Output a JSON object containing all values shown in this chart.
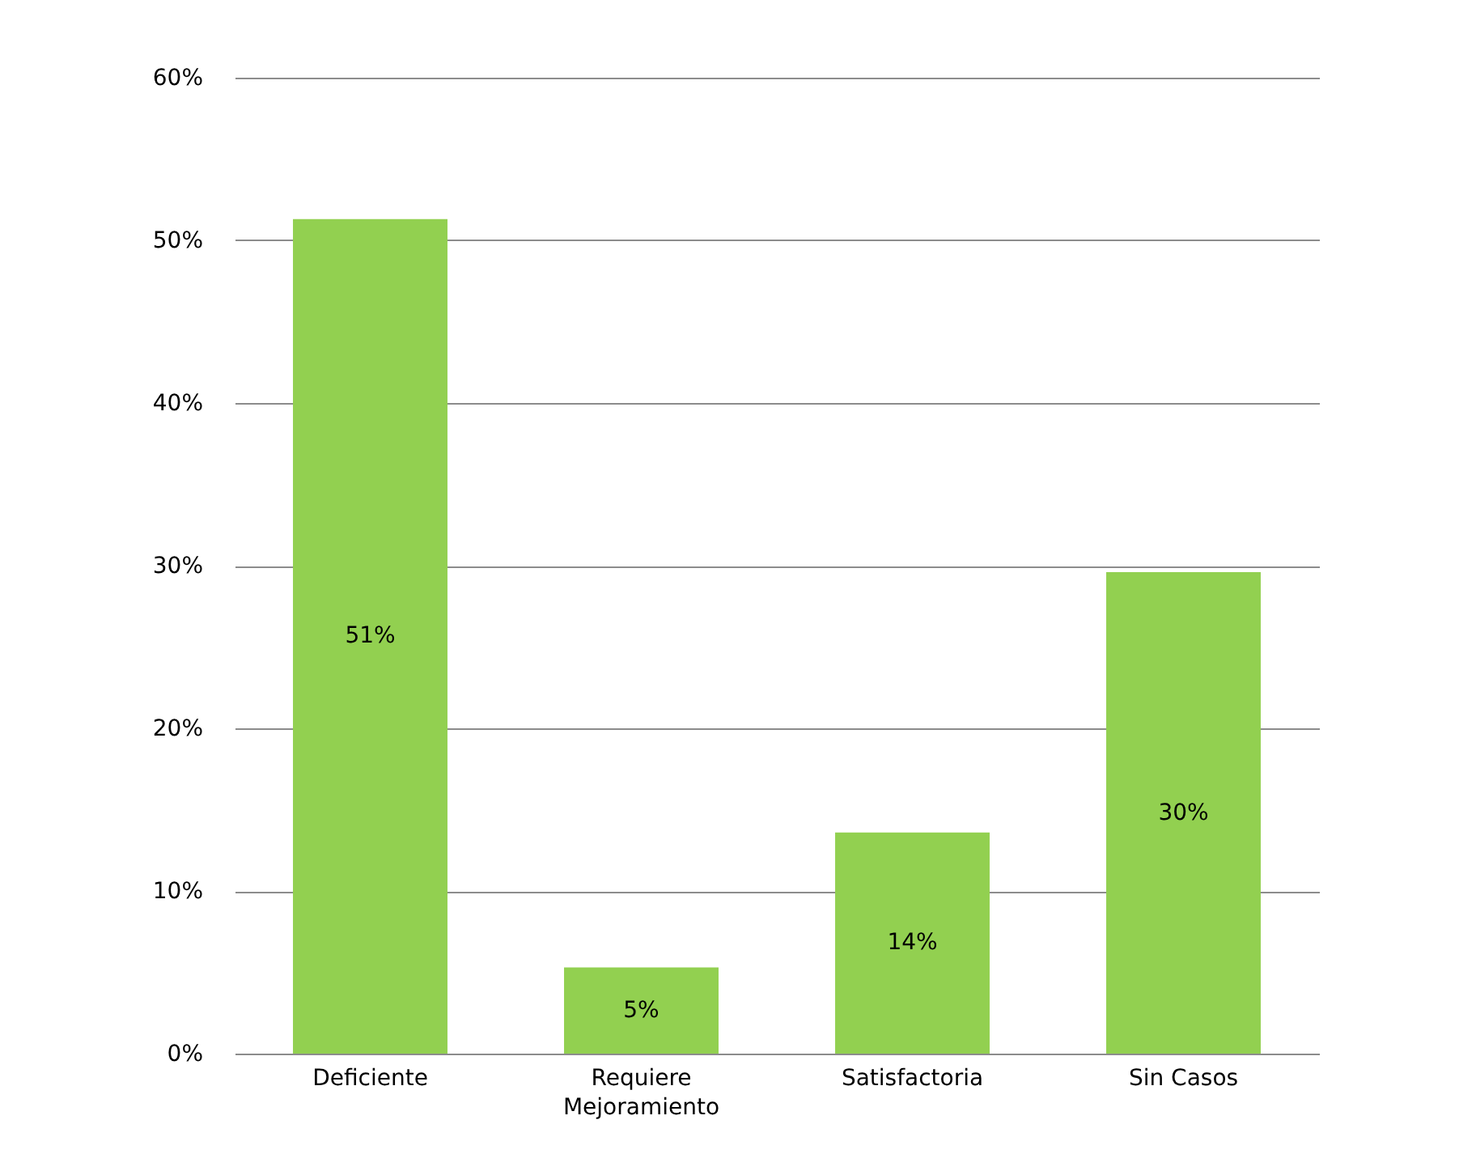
{
  "chart_data": {
    "type": "bar",
    "categories": [
      "Deficiente",
      "Requiere Mejoramiento",
      "Satisfactoria",
      "Sin Casos"
    ],
    "values": [
      51.3,
      5.3,
      13.6,
      29.6
    ],
    "value_labels": [
      "51%",
      "5%",
      "14%",
      "30%"
    ],
    "color": "#92d050",
    "ylim": [
      0,
      60
    ],
    "yticks": [
      {
        "value": 0,
        "label": "0%"
      },
      {
        "value": 10,
        "label": "10%"
      },
      {
        "value": 20,
        "label": "20%"
      },
      {
        "value": 30,
        "label": "30%"
      },
      {
        "value": 40,
        "label": "40%"
      },
      {
        "value": 50,
        "label": "50%"
      },
      {
        "value": 60,
        "label": "60%"
      }
    ],
    "grid": "y"
  }
}
